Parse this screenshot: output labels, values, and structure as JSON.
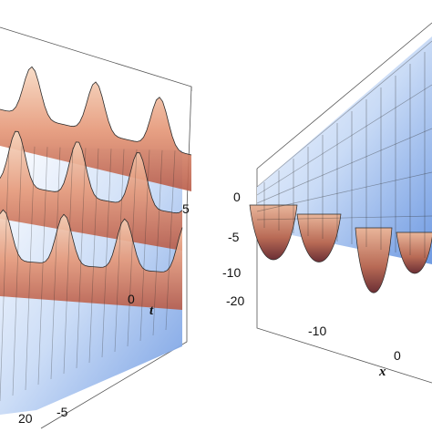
{
  "chart_data": [
    {
      "type": "surface",
      "panel": "left",
      "axes": {
        "t": {
          "label": "t",
          "ticks": [
            "-5",
            "0",
            "5"
          ],
          "range": [
            -5,
            5
          ]
        },
        "x": {
          "ticks": [
            "20"
          ],
          "range": [
            -20,
            20
          ]
        }
      },
      "surface": {
        "description": "multi-row breather / rogue-wave surface with positive peaks",
        "peak_height_relative": 1.0,
        "colormap": [
          "#d26a4c",
          "#f2c9a8",
          "#ffffff",
          "#a8c8f0",
          "#3f6fd0"
        ]
      },
      "grid": true
    },
    {
      "type": "surface",
      "panel": "right",
      "axes": {
        "z": {
          "ticks": [
            "0",
            "-5",
            "-10",
            "-20"
          ],
          "range": [
            -20,
            2
          ]
        },
        "x": {
          "label": "x",
          "ticks": [
            "-10",
            "0"
          ],
          "range": [
            -20,
            20
          ]
        }
      },
      "surface": {
        "description": "periodic surface with deep negative troughs",
        "trough_min": -12,
        "colormap": [
          "#8a3a3a",
          "#d07a5a",
          "#f3cdb0",
          "#ffffff",
          "#9fc0ef",
          "#3f6fd0"
        ]
      },
      "grid": true
    }
  ]
}
